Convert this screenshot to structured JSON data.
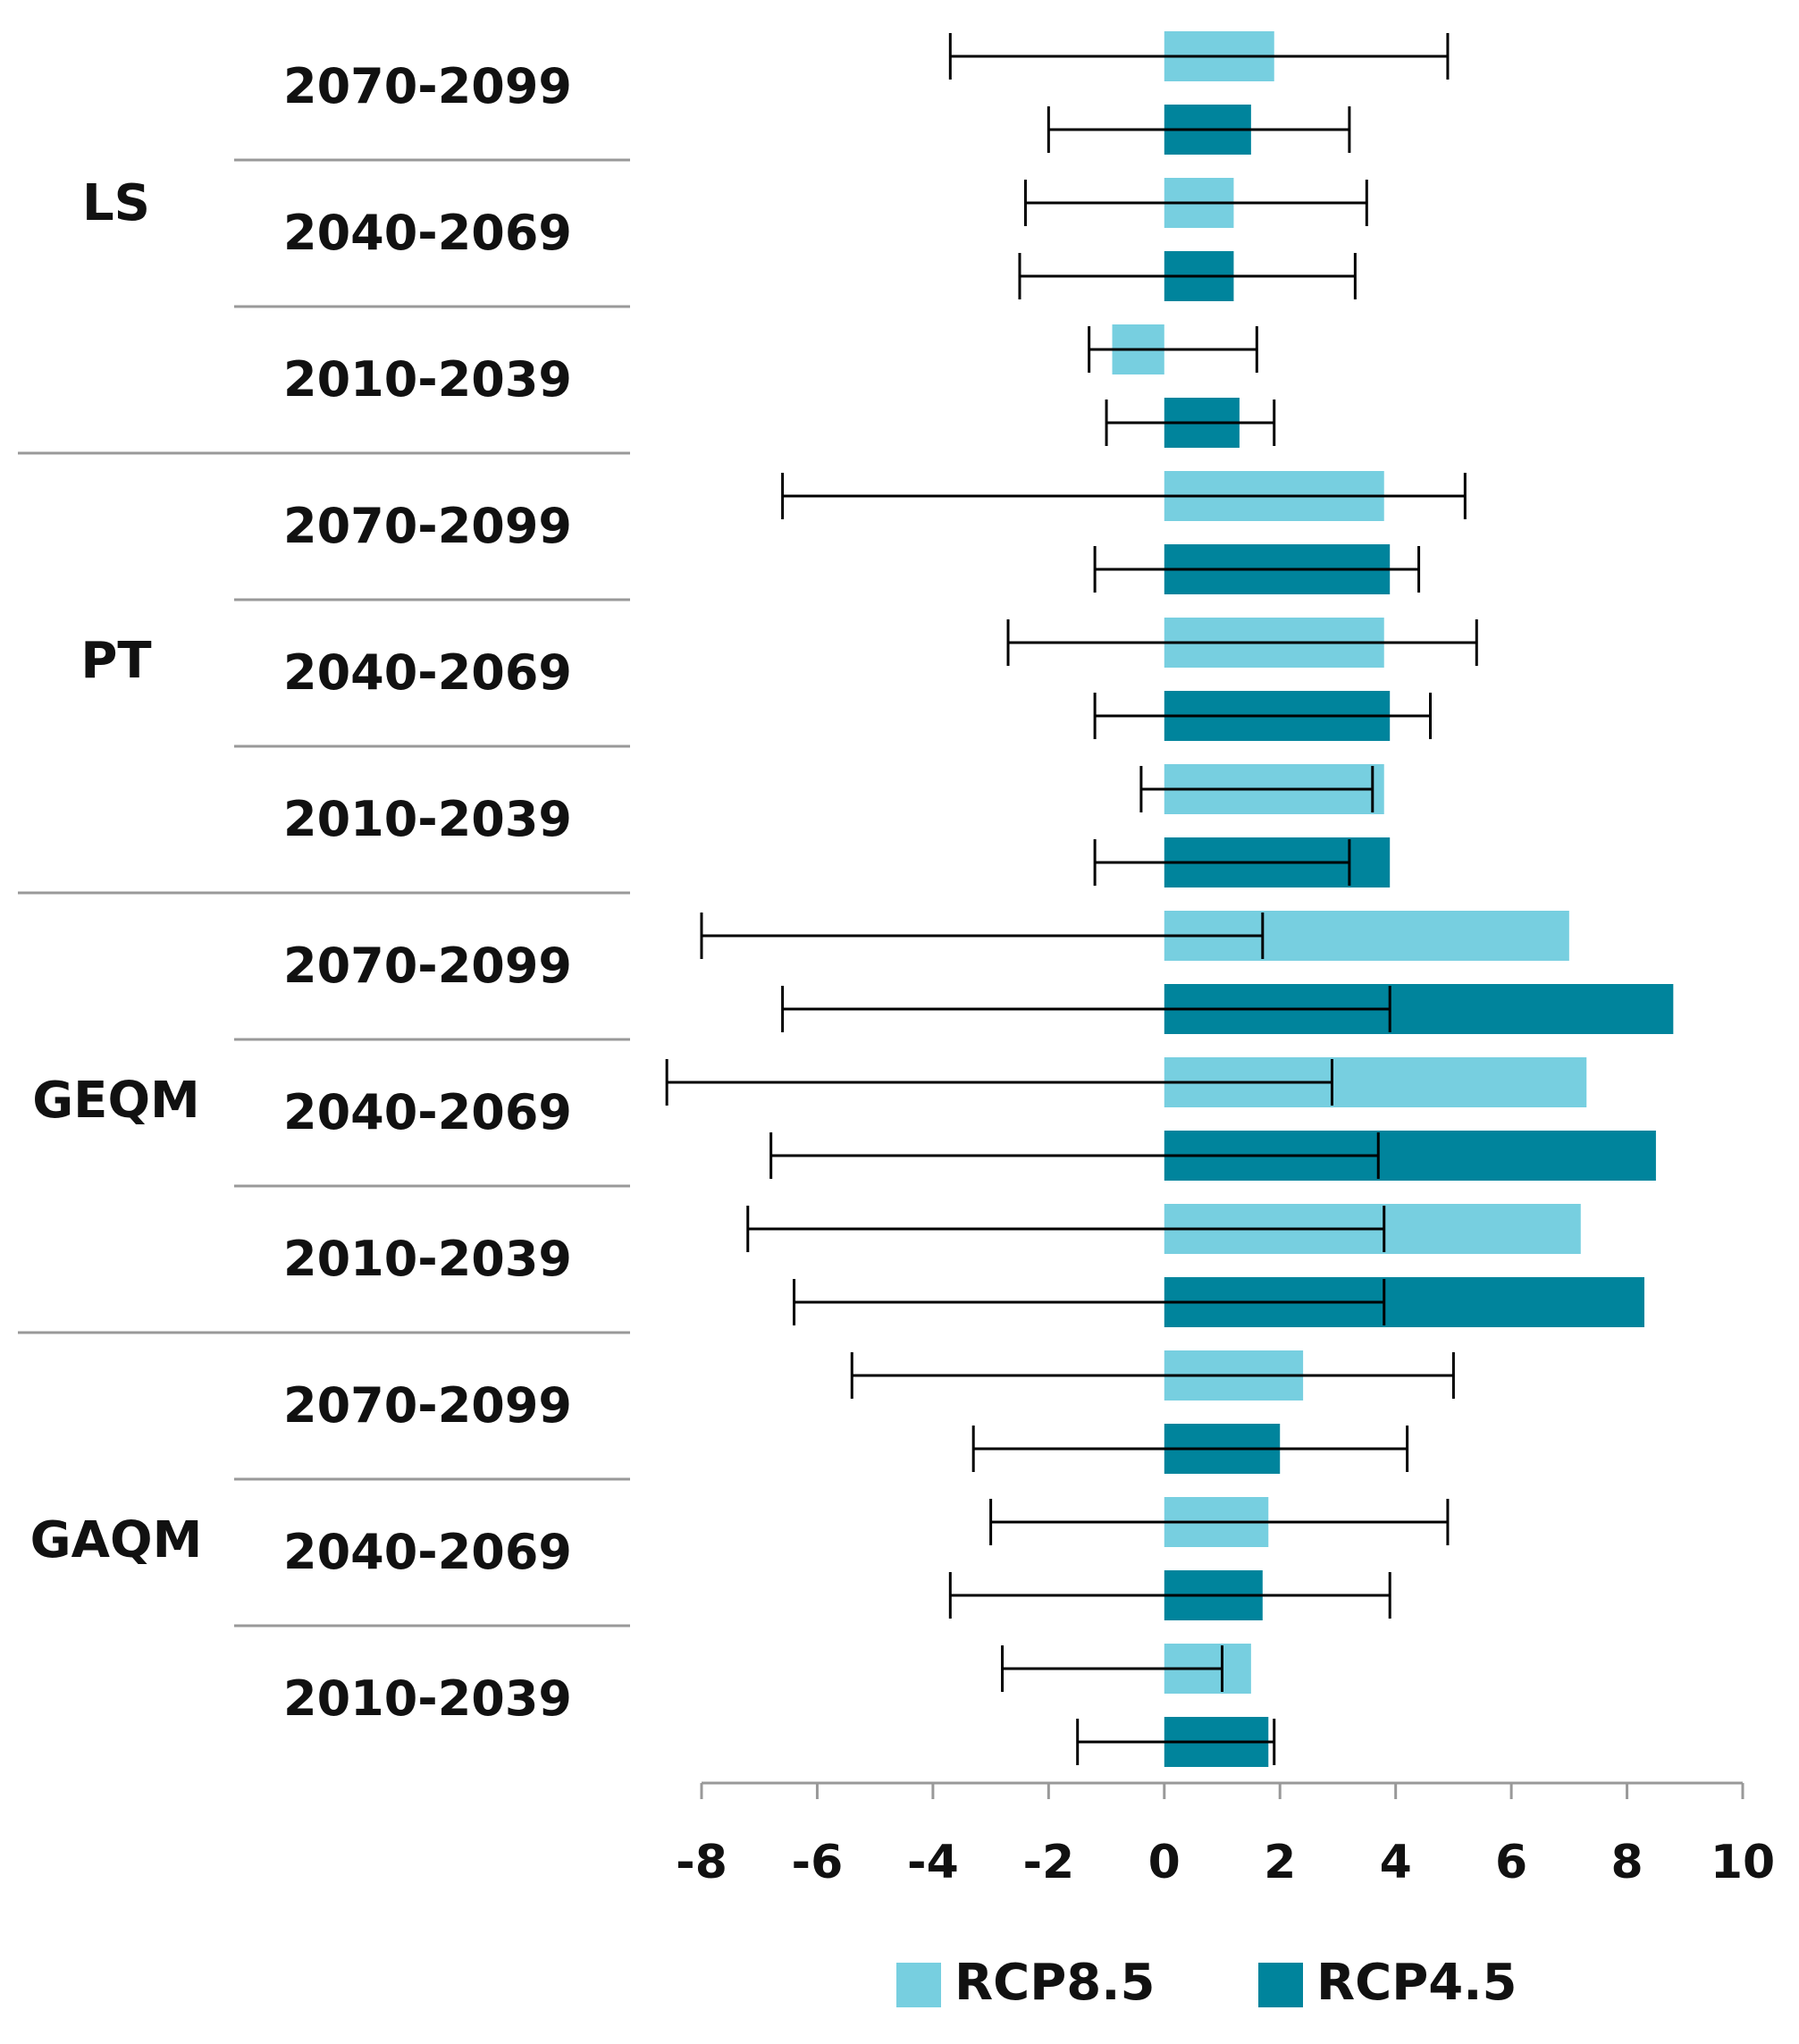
{
  "chart_data": {
    "type": "bar",
    "orientation": "horizontal",
    "title": "",
    "xlabel": "",
    "ylabel": "",
    "xlim": [
      -8,
      10
    ],
    "xticks": [
      "-8",
      "-6",
      "-4",
      "-2",
      "0",
      "2",
      "4",
      "6",
      "8",
      "10"
    ],
    "grid": false,
    "legend": "bottom-center",
    "colors": {
      "RCP8.5": "#77cfe0",
      "RCP4.5": "#00849c",
      "error_bar": "#000000",
      "divider": "#999999"
    },
    "series_names": [
      "RCP8.5",
      "RCP4.5"
    ],
    "groups": [
      {
        "name": "LS",
        "periods": [
          {
            "label": "2070-2099",
            "bars": [
              {
                "series": "RCP8.5",
                "value": 1.9,
                "err_low": -3.7,
                "err_high": 4.9
              },
              {
                "series": "RCP4.5",
                "value": 1.5,
                "err_low": -2.0,
                "err_high": 3.2
              }
            ]
          },
          {
            "label": "2040-2069",
            "bars": [
              {
                "series": "RCP8.5",
                "value": 1.2,
                "err_low": -2.4,
                "err_high": 3.5
              },
              {
                "series": "RCP4.5",
                "value": 1.2,
                "err_low": -2.5,
                "err_high": 3.3
              }
            ]
          },
          {
            "label": "2010-2039",
            "bars": [
              {
                "series": "RCP8.5",
                "value": -0.9,
                "err_low": -1.3,
                "err_high": 1.6
              },
              {
                "series": "RCP4.5",
                "value": 1.3,
                "err_low": -1.0,
                "err_high": 1.9
              }
            ]
          }
        ]
      },
      {
        "name": "PT",
        "periods": [
          {
            "label": "2070-2099",
            "bars": [
              {
                "series": "RCP8.5",
                "value": 3.8,
                "err_low": -6.6,
                "err_high": 5.2
              },
              {
                "series": "RCP4.5",
                "value": 3.9,
                "err_low": -1.2,
                "err_high": 4.4
              }
            ]
          },
          {
            "label": "2040-2069",
            "bars": [
              {
                "series": "RCP8.5",
                "value": 3.8,
                "err_low": -2.7,
                "err_high": 5.4
              },
              {
                "series": "RCP4.5",
                "value": 3.9,
                "err_low": -1.2,
                "err_high": 4.6
              }
            ]
          },
          {
            "label": "2010-2039",
            "bars": [
              {
                "series": "RCP8.5",
                "value": 3.8,
                "err_low": -0.4,
                "err_high": 3.6
              },
              {
                "series": "RCP4.5",
                "value": 3.9,
                "err_low": -1.2,
                "err_high": 3.2
              }
            ]
          }
        ]
      },
      {
        "name": "GEQM",
        "periods": [
          {
            "label": "2070-2099",
            "bars": [
              {
                "series": "RCP8.5",
                "value": 7.0,
                "err_low": -8.0,
                "err_high": 1.7
              },
              {
                "series": "RCP4.5",
                "value": 8.8,
                "err_low": -6.6,
                "err_high": 3.9
              }
            ]
          },
          {
            "label": "2040-2069",
            "bars": [
              {
                "series": "RCP8.5",
                "value": 7.3,
                "err_low": -8.6,
                "err_high": 2.9
              },
              {
                "series": "RCP4.5",
                "value": 8.5,
                "err_low": -6.8,
                "err_high": 3.7
              }
            ]
          },
          {
            "label": "2010-2039",
            "bars": [
              {
                "series": "RCP8.5",
                "value": 7.2,
                "err_low": -7.2,
                "err_high": 3.8
              },
              {
                "series": "RCP4.5",
                "value": 8.3,
                "err_low": -6.4,
                "err_high": 3.8
              }
            ]
          }
        ]
      },
      {
        "name": "GAQM",
        "periods": [
          {
            "label": "2070-2099",
            "bars": [
              {
                "series": "RCP8.5",
                "value": 2.4,
                "err_low": -5.4,
                "err_high": 5.0
              },
              {
                "series": "RCP4.5",
                "value": 2.0,
                "err_low": -3.3,
                "err_high": 4.2
              }
            ]
          },
          {
            "label": "2040-2069",
            "bars": [
              {
                "series": "RCP8.5",
                "value": 1.8,
                "err_low": -3.0,
                "err_high": 4.9
              },
              {
                "series": "RCP4.5",
                "value": 1.7,
                "err_low": -3.7,
                "err_high": 3.9
              }
            ]
          },
          {
            "label": "2010-2039",
            "bars": [
              {
                "series": "RCP8.5",
                "value": 1.5,
                "err_low": -2.8,
                "err_high": 1.0
              },
              {
                "series": "RCP4.5",
                "value": 1.8,
                "err_low": -1.5,
                "err_high": 1.9
              }
            ]
          }
        ]
      }
    ]
  }
}
